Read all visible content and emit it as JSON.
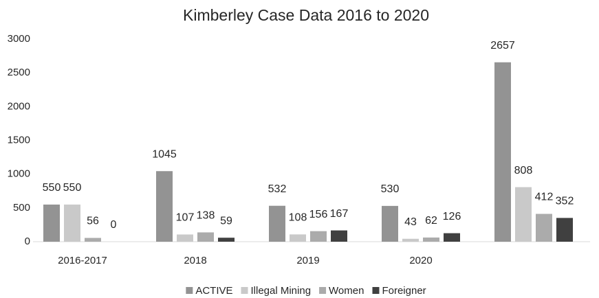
{
  "chart_data": {
    "type": "bar",
    "title": "Kimberley Case Data 2016 to 2020",
    "categories": [
      "2016-2017",
      "2018",
      "2019",
      "2020",
      null
    ],
    "series": [
      {
        "name": "ACTIVE",
        "color": "#939393",
        "values": [
          550,
          1045,
          532,
          530,
          2657
        ]
      },
      {
        "name": "Illegal Mining",
        "color": "#c9c9c9",
        "values": [
          550,
          107,
          108,
          43,
          808
        ]
      },
      {
        "name": "Women",
        "color": "#ababab",
        "values": [
          56,
          138,
          156,
          62,
          412
        ]
      },
      {
        "name": "Foreigner",
        "color": "#404040",
        "values": [
          0,
          59,
          167,
          126,
          352
        ]
      }
    ],
    "ylim": [
      0,
      3000
    ],
    "yticks": [
      0,
      500,
      1000,
      1500,
      2000,
      2500,
      3000
    ],
    "grid": false,
    "legend": "bottom"
  }
}
